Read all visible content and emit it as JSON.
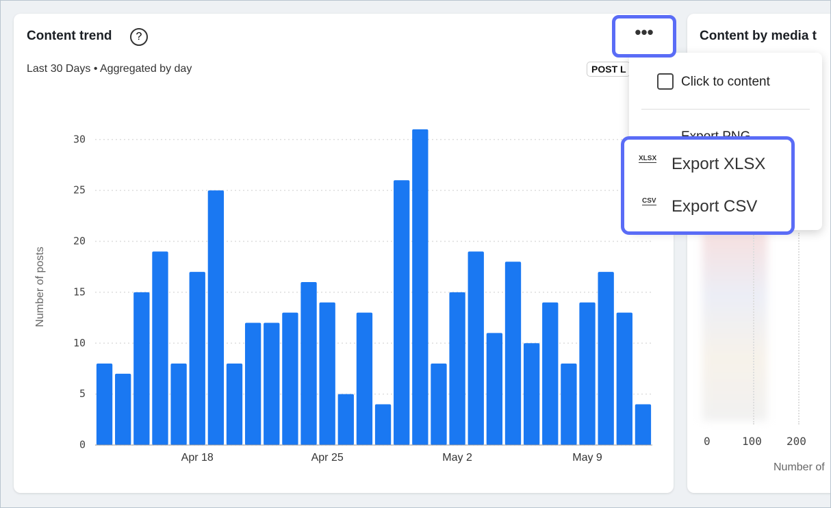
{
  "chart_data": {
    "type": "bar",
    "title": "Content trend",
    "subtitle": "Last 30 Days • Aggregated by day",
    "y_label": "Number of posts",
    "categories": [
      null,
      null,
      null,
      null,
      null,
      "Apr 18",
      null,
      null,
      null,
      null,
      null,
      null,
      "Apr 25",
      null,
      null,
      null,
      null,
      null,
      null,
      "May 2",
      null,
      null,
      null,
      null,
      null,
      null,
      "May 9",
      null,
      null,
      null
    ],
    "values": [
      8,
      7,
      15,
      19,
      8,
      17,
      25,
      8,
      12,
      12,
      13,
      16,
      14,
      5,
      13,
      4,
      26,
      31,
      8,
      15,
      19,
      11,
      18,
      10,
      14,
      8,
      14,
      17,
      13,
      4
    ],
    "color": "#1a78f2",
    "ylim": [
      0,
      32
    ],
    "yticks": [
      0,
      5,
      10,
      15,
      20,
      25,
      30
    ],
    "grid": true
  },
  "ui": {
    "badge": "POST L",
    "side_title": "Content by media t",
    "side_xticks": [
      "0",
      "100",
      "200"
    ],
    "side_xlabel": "Number of",
    "menu": {
      "items": [
        "Click to content",
        "Export PNG",
        "Export XLSX",
        "Export CSV"
      ],
      "icons": [
        "XLSX",
        "CSV"
      ]
    }
  }
}
